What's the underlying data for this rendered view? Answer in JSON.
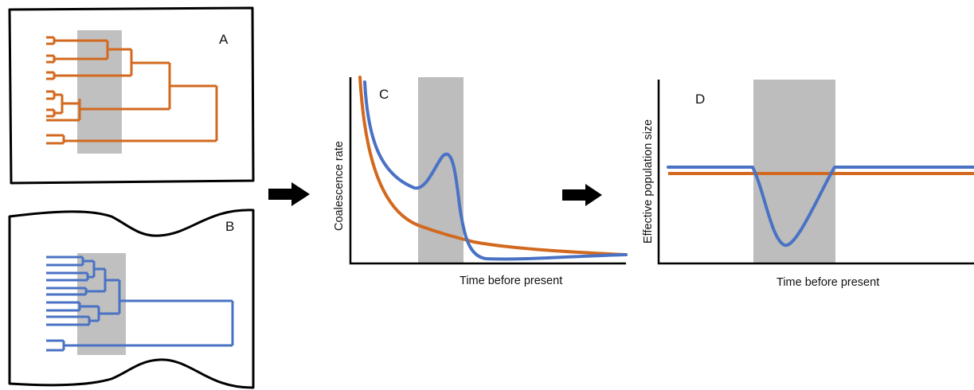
{
  "panels": {
    "a": {
      "letter": "A"
    },
    "b": {
      "letter": "B"
    },
    "c": {
      "letter": "C",
      "xlabel": "Time before present",
      "ylabel": "Coalescence rate"
    },
    "d": {
      "letter": "D",
      "xlabel": "Time before present",
      "ylabel": "Effective population size"
    }
  },
  "colors": {
    "orange": "#d2691e",
    "orange_dark": "#8b4513",
    "blue": "#4a72c4",
    "blue_dark": "#2f4c8c",
    "shade": "#bdbdbd",
    "axis": "#000000",
    "arrow": "#000000"
  }
}
